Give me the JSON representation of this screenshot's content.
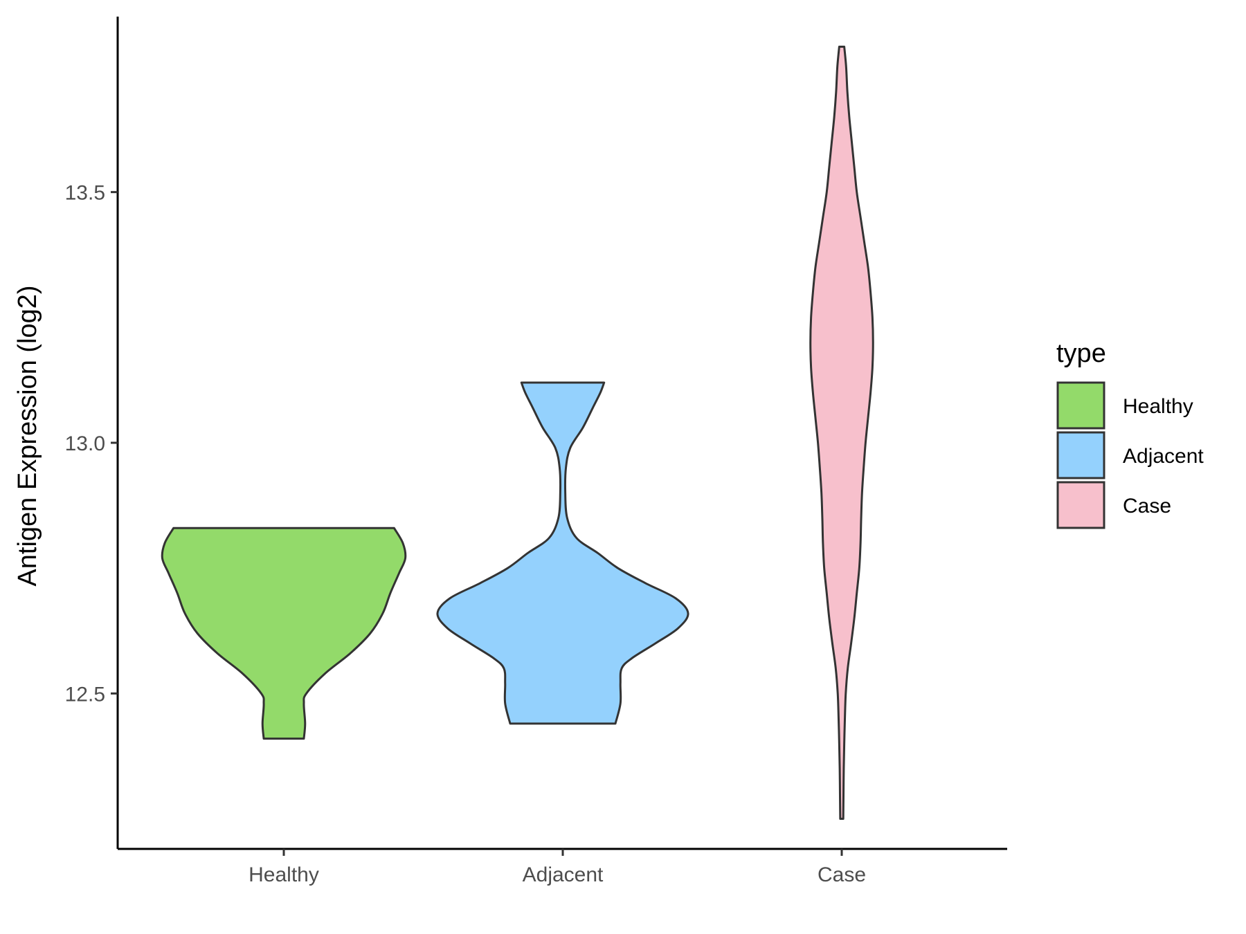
{
  "chart_data": {
    "type": "violin",
    "ylabel": "Antigen Expression (log2)",
    "ylim": [
      12.19,
      13.85
    ],
    "yticks": [
      12.5,
      13.0,
      13.5
    ],
    "ytick_labels": [
      "12.5",
      "13.0",
      "13.5"
    ],
    "categories": [
      "Healthy",
      "Adjacent",
      "Case"
    ],
    "grid": false,
    "legend": {
      "title": "type",
      "position": "right",
      "entries": [
        "Healthy",
        "Adjacent",
        "Case"
      ]
    },
    "series": [
      {
        "name": "Healthy",
        "color": "#93DA6A",
        "range": [
          12.41,
          12.83
        ],
        "profile": [
          [
            12.41,
            0.16
          ],
          [
            12.44,
            0.17
          ],
          [
            12.48,
            0.16
          ],
          [
            12.5,
            0.18
          ],
          [
            12.54,
            0.33
          ],
          [
            12.58,
            0.53
          ],
          [
            12.62,
            0.69
          ],
          [
            12.66,
            0.79
          ],
          [
            12.7,
            0.85
          ],
          [
            12.74,
            0.92
          ],
          [
            12.77,
            0.97
          ],
          [
            12.8,
            0.95
          ],
          [
            12.83,
            0.88
          ]
        ]
      },
      {
        "name": "Adjacent",
        "color": "#94D1FD",
        "range": [
          12.44,
          13.12
        ],
        "profile": [
          [
            12.44,
            0.42
          ],
          [
            12.48,
            0.46
          ],
          [
            12.52,
            0.46
          ],
          [
            12.55,
            0.47
          ],
          [
            12.57,
            0.55
          ],
          [
            12.6,
            0.74
          ],
          [
            12.63,
            0.92
          ],
          [
            12.66,
            1.0
          ],
          [
            12.69,
            0.9
          ],
          [
            12.72,
            0.66
          ],
          [
            12.75,
            0.44
          ],
          [
            12.78,
            0.28
          ],
          [
            12.81,
            0.11
          ],
          [
            12.85,
            0.035
          ],
          [
            12.9,
            0.02
          ],
          [
            12.95,
            0.025
          ],
          [
            12.99,
            0.06
          ],
          [
            13.03,
            0.16
          ],
          [
            13.07,
            0.24
          ],
          [
            13.1,
            0.3
          ],
          [
            13.12,
            0.33
          ]
        ]
      },
      {
        "name": "Case",
        "color": "#F7C0CC",
        "range": [
          12.25,
          13.79
        ],
        "profile": [
          [
            12.25,
            0.012
          ],
          [
            12.3,
            0.014
          ],
          [
            12.35,
            0.016
          ],
          [
            12.4,
            0.02
          ],
          [
            12.45,
            0.025
          ],
          [
            12.5,
            0.032
          ],
          [
            12.55,
            0.048
          ],
          [
            12.6,
            0.075
          ],
          [
            12.65,
            0.1
          ],
          [
            12.7,
            0.12
          ],
          [
            12.75,
            0.14
          ],
          [
            12.8,
            0.15
          ],
          [
            12.85,
            0.155
          ],
          [
            12.9,
            0.162
          ],
          [
            12.95,
            0.175
          ],
          [
            13.0,
            0.19
          ],
          [
            13.05,
            0.21
          ],
          [
            13.1,
            0.23
          ],
          [
            13.15,
            0.245
          ],
          [
            13.2,
            0.25
          ],
          [
            13.25,
            0.245
          ],
          [
            13.3,
            0.23
          ],
          [
            13.35,
            0.21
          ],
          [
            13.4,
            0.18
          ],
          [
            13.45,
            0.15
          ],
          [
            13.5,
            0.12
          ],
          [
            13.55,
            0.1
          ],
          [
            13.6,
            0.08
          ],
          [
            13.65,
            0.06
          ],
          [
            13.7,
            0.045
          ],
          [
            13.75,
            0.035
          ],
          [
            13.79,
            0.02
          ]
        ]
      }
    ]
  }
}
